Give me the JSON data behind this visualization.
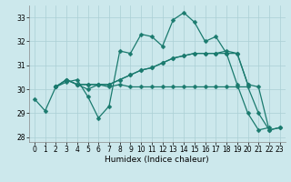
{
  "xlabel": "Humidex (Indice chaleur)",
  "bg_color": "#cce8ec",
  "grid_color": "#aacfd4",
  "line_color": "#1a7a6e",
  "xlim": [
    -0.5,
    23.5
  ],
  "ylim": [
    27.8,
    33.5
  ],
  "yticks": [
    28,
    29,
    30,
    31,
    32,
    33
  ],
  "xticks": [
    0,
    1,
    2,
    3,
    4,
    5,
    6,
    7,
    8,
    9,
    10,
    11,
    12,
    13,
    14,
    15,
    16,
    17,
    18,
    19,
    20,
    21,
    22,
    23
  ],
  "series_a_x": [
    0,
    1,
    2,
    3,
    4,
    5,
    6,
    7,
    8,
    9,
    10,
    11,
    12,
    13,
    14,
    15,
    16,
    17,
    18,
    19,
    20,
    21,
    22
  ],
  "series_a_y": [
    29.6,
    29.1,
    30.1,
    30.3,
    30.4,
    29.7,
    28.8,
    29.3,
    31.6,
    31.5,
    32.3,
    32.2,
    31.8,
    32.9,
    33.2,
    32.8,
    32.0,
    32.2,
    31.5,
    30.2,
    29.0,
    28.3,
    28.4
  ],
  "series_b_x": [
    2,
    3,
    4,
    5,
    6,
    7,
    8,
    9,
    10,
    11,
    12,
    13,
    14,
    15,
    16,
    17,
    18,
    19,
    20,
    21,
    22,
    23
  ],
  "series_b_y": [
    30.1,
    30.4,
    30.2,
    30.2,
    30.2,
    30.2,
    30.4,
    30.6,
    30.8,
    30.9,
    31.1,
    31.3,
    31.4,
    31.5,
    31.5,
    31.5,
    31.5,
    31.5,
    30.2,
    30.1,
    28.3,
    28.4
  ],
  "series_c_x": [
    2,
    3,
    4,
    5,
    6,
    7,
    8,
    9,
    10,
    11,
    12,
    13,
    14,
    15,
    16,
    17,
    18,
    19,
    20,
    21,
    22,
    23
  ],
  "series_c_y": [
    30.1,
    30.4,
    30.2,
    30.0,
    30.2,
    30.1,
    30.2,
    30.1,
    30.1,
    30.1,
    30.1,
    30.1,
    30.1,
    30.1,
    30.1,
    30.1,
    30.1,
    30.1,
    30.1,
    29.0,
    28.3,
    28.4
  ],
  "series_d_x": [
    2,
    3,
    4,
    5,
    6,
    7,
    8,
    9,
    10,
    11,
    12,
    13,
    14,
    15,
    16,
    17,
    18,
    19,
    20
  ],
  "series_d_y": [
    30.1,
    30.4,
    30.2,
    30.2,
    30.2,
    30.2,
    30.4,
    30.6,
    30.8,
    30.9,
    31.1,
    31.3,
    31.4,
    31.5,
    31.5,
    31.5,
    31.6,
    31.5,
    30.2
  ],
  "markersize": 2.5,
  "linewidth": 0.9
}
